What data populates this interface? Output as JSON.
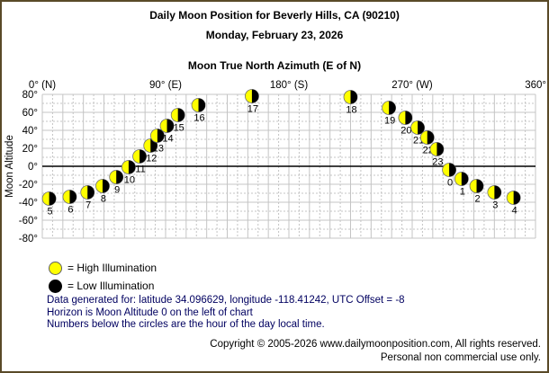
{
  "header": {
    "title": "Daily Moon Position for Beverly Hills, CA (90210)",
    "subtitle": "Monday, February 23, 2026"
  },
  "chart_data": {
    "type": "scatter",
    "title": "Moon True North Azimuth (E of N)",
    "xlabel": "Moon True North Azimuth (E of N)",
    "ylabel": "Moon Altitude",
    "xlim": [
      0,
      360
    ],
    "ylim": [
      -80,
      80
    ],
    "grid": "on",
    "horizon_altitude": 0,
    "x_ticks": [
      {
        "value": 0,
        "label": "0° (N)"
      },
      {
        "value": 90,
        "label": "90° (E)"
      },
      {
        "value": 180,
        "label": "180° (S)"
      },
      {
        "value": 270,
        "label": "270° (W)"
      },
      {
        "value": 360,
        "label": "360°"
      }
    ],
    "y_ticks": [
      {
        "value": 80,
        "label": "80°"
      },
      {
        "value": 60,
        "label": "60°"
      },
      {
        "value": 40,
        "label": "40°"
      },
      {
        "value": 20,
        "label": "20°"
      },
      {
        "value": 0,
        "label": "0°"
      },
      {
        "value": -20,
        "label": "-20°"
      },
      {
        "value": -40,
        "label": "-40°"
      },
      {
        "value": -60,
        "label": "-60°"
      },
      {
        "value": -80,
        "label": "-80°"
      }
    ],
    "marker_colors": {
      "illuminated": "#ffff00",
      "dark": "#000000",
      "outline": "#707070"
    },
    "points": [
      {
        "hour": 0,
        "azimuth": 297,
        "altitude": -4,
        "illuminated_fraction": 0.5
      },
      {
        "hour": 1,
        "azimuth": 306,
        "altitude": -14,
        "illuminated_fraction": 0.5
      },
      {
        "hour": 2,
        "azimuth": 317,
        "altitude": -22,
        "illuminated_fraction": 0.5
      },
      {
        "hour": 3,
        "azimuth": 330,
        "altitude": -29,
        "illuminated_fraction": 0.5
      },
      {
        "hour": 4,
        "azimuth": 344,
        "altitude": -35,
        "illuminated_fraction": 0.5
      },
      {
        "hour": 5,
        "azimuth": 5,
        "altitude": -36,
        "illuminated_fraction": 0.5
      },
      {
        "hour": 6,
        "azimuth": 20,
        "altitude": -34,
        "illuminated_fraction": 0.5
      },
      {
        "hour": 7,
        "azimuth": 33,
        "altitude": -29,
        "illuminated_fraction": 0.5
      },
      {
        "hour": 8,
        "azimuth": 44,
        "altitude": -22,
        "illuminated_fraction": 0.5
      },
      {
        "hour": 9,
        "azimuth": 54,
        "altitude": -12,
        "illuminated_fraction": 0.5
      },
      {
        "hour": 10,
        "azimuth": 63,
        "altitude": -1,
        "illuminated_fraction": 0.5
      },
      {
        "hour": 11,
        "azimuth": 71,
        "altitude": 11,
        "illuminated_fraction": 0.5
      },
      {
        "hour": 12,
        "azimuth": 79,
        "altitude": 23,
        "illuminated_fraction": 0.5
      },
      {
        "hour": 13,
        "azimuth": 84,
        "altitude": 34,
        "illuminated_fraction": 0.5
      },
      {
        "hour": 14,
        "azimuth": 91,
        "altitude": 45,
        "illuminated_fraction": 0.5
      },
      {
        "hour": 15,
        "azimuth": 99,
        "altitude": 57,
        "illuminated_fraction": 0.5
      },
      {
        "hour": 16,
        "azimuth": 114,
        "altitude": 68,
        "illuminated_fraction": 0.5
      },
      {
        "hour": 17,
        "azimuth": 153,
        "altitude": 78,
        "illuminated_fraction": 0.5
      },
      {
        "hour": 18,
        "azimuth": 225,
        "altitude": 77,
        "illuminated_fraction": 0.5
      },
      {
        "hour": 19,
        "azimuth": 253,
        "altitude": 65,
        "illuminated_fraction": 0.5
      },
      {
        "hour": 20,
        "azimuth": 265,
        "altitude": 54,
        "illuminated_fraction": 0.5
      },
      {
        "hour": 21,
        "azimuth": 274,
        "altitude": 43,
        "illuminated_fraction": 0.5
      },
      {
        "hour": 22,
        "azimuth": 281,
        "altitude": 32,
        "illuminated_fraction": 0.5
      },
      {
        "hour": 23,
        "azimuth": 288,
        "altitude": 19,
        "illuminated_fraction": 0.5
      }
    ]
  },
  "legend": {
    "high": {
      "swatch_color": "#ffff00",
      "label": "= High Illumination"
    },
    "low": {
      "swatch_color": "#000000",
      "label": "= Low Illumination"
    }
  },
  "notes": [
    "Data generated for: latitude 34.096629, longitude -118.41242, UTC Offset = -8",
    "Horizon is Moon Altitude 0 on the left of chart",
    "Numbers below the circles are the hour of the day local time."
  ],
  "footer": {
    "line1": "Copyright © 2005-2026 www.dailymoonposition.com, All rights reserved.",
    "line2": "Personal non commercial use only."
  },
  "colors": {
    "frame_border": "#5a4a28",
    "grid": "#c4c4c4",
    "horizon_line": "#000000",
    "note_text": "#000060"
  }
}
